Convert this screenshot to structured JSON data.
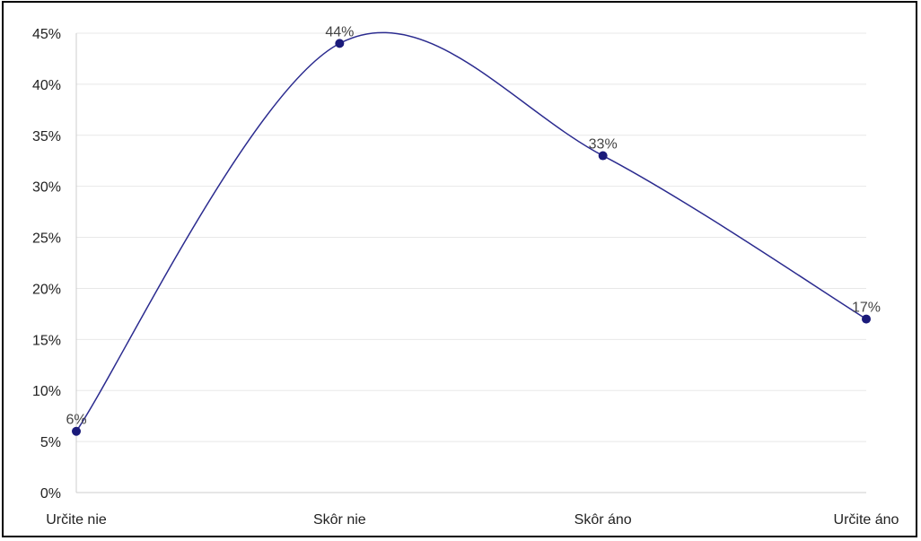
{
  "chart_data": {
    "type": "line",
    "categories": [
      "Určite nie",
      "Skôr nie",
      "Skôr áno",
      "Určite áno"
    ],
    "values": [
      6,
      44,
      33,
      17
    ],
    "value_labels": [
      "6%",
      "44%",
      "33%",
      "17%"
    ],
    "y_ticks": [
      "0%",
      "5%",
      "10%",
      "15%",
      "20%",
      "25%",
      "30%",
      "35%",
      "40%",
      "45%"
    ],
    "ylim": [
      0,
      45
    ],
    "y_step": 5,
    "grid": true,
    "smooth": true,
    "colors": {
      "line": "#2b2b8f",
      "point": "#1a1a7a",
      "grid": "#e8e8e8",
      "axis": "#cccccc",
      "frame": "#000000"
    }
  }
}
